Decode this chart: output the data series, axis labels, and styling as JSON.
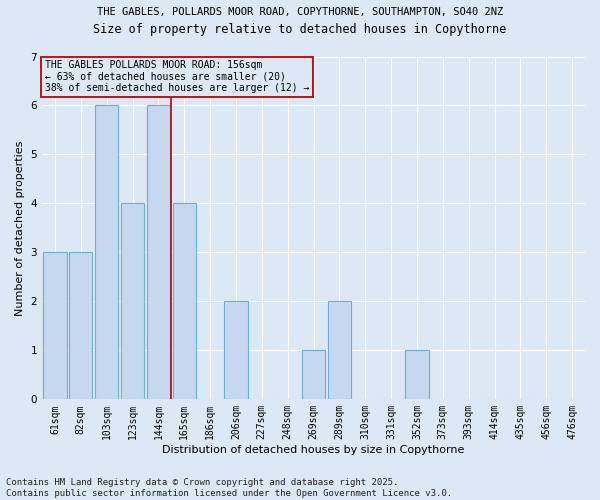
{
  "title1": "THE GABLES, POLLARDS MOOR ROAD, COPYTHORNE, SOUTHAMPTON, SO40 2NZ",
  "title2": "Size of property relative to detached houses in Copythorne",
  "xlabel": "Distribution of detached houses by size in Copythorne",
  "ylabel": "Number of detached properties",
  "categories": [
    "61sqm",
    "82sqm",
    "103sqm",
    "123sqm",
    "144sqm",
    "165sqm",
    "186sqm",
    "206sqm",
    "227sqm",
    "248sqm",
    "269sqm",
    "289sqm",
    "310sqm",
    "331sqm",
    "352sqm",
    "373sqm",
    "393sqm",
    "414sqm",
    "435sqm",
    "456sqm",
    "476sqm"
  ],
  "values": [
    3,
    3,
    6,
    4,
    6,
    4,
    0,
    2,
    0,
    0,
    1,
    2,
    0,
    0,
    1,
    0,
    0,
    0,
    0,
    0,
    0
  ],
  "bar_color": "#c5d8f0",
  "bar_edge_color": "#6baed6",
  "vline_x": 4.5,
  "vline_color": "#c00000",
  "annotation_box_text": "THE GABLES POLLARDS MOOR ROAD: 156sqm\n← 63% of detached houses are smaller (20)\n38% of semi-detached houses are larger (12) →",
  "annotation_box_edge_color": "#c00000",
  "ylim": [
    0,
    7
  ],
  "yticks": [
    0,
    1,
    2,
    3,
    4,
    5,
    6,
    7
  ],
  "bg_color": "#dce8f5",
  "plot_bg_color": "#dce8f5",
  "grid_color": "#ffffff",
  "footer_line1": "Contains HM Land Registry data © Crown copyright and database right 2025.",
  "footer_line2": "Contains public sector information licensed under the Open Government Licence v3.0.",
  "title1_fontsize": 7.5,
  "title2_fontsize": 8.5,
  "xlabel_fontsize": 8,
  "ylabel_fontsize": 8,
  "tick_fontsize": 7,
  "footer_fontsize": 6.5,
  "ann_fontsize": 7
}
